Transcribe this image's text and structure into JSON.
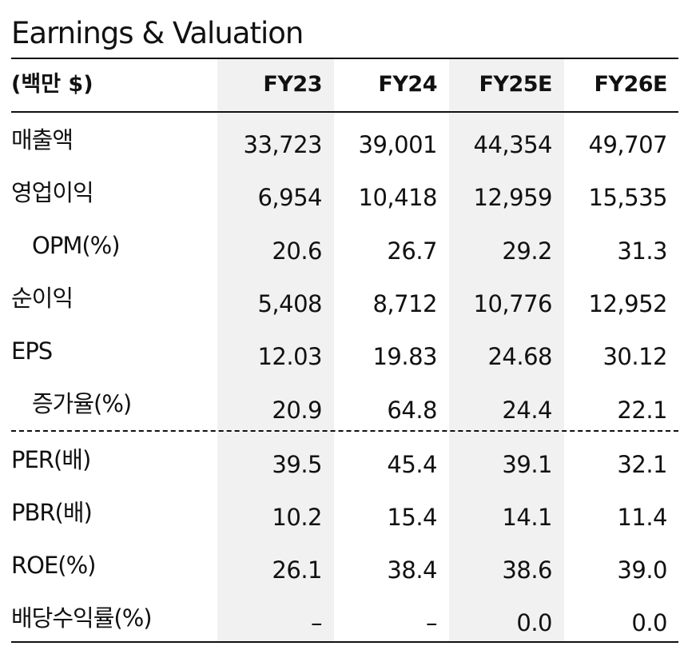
{
  "title": "Earnings & Valuation",
  "header": {
    "unit": "(백만 $)",
    "columns": [
      "FY23",
      "FY24",
      "FY25E",
      "FY26E"
    ]
  },
  "rows": [
    {
      "label": "매출액",
      "values": [
        "33,723",
        "39,001",
        "44,354",
        "49,707"
      ]
    },
    {
      "label": "영업이익",
      "values": [
        "6,954",
        "10,418",
        "12,959",
        "15,535"
      ]
    },
    {
      "label": "OPM(%)",
      "values": [
        "20.6",
        "26.7",
        "29.2",
        "31.3"
      ]
    },
    {
      "label": "순이익",
      "values": [
        "5,408",
        "8,712",
        "10,776",
        "12,952"
      ]
    },
    {
      "label": "EPS",
      "values": [
        "12.03",
        "19.83",
        "24.68",
        "30.12"
      ]
    },
    {
      "label": "증가율(%)",
      "values": [
        "20.9",
        "64.8",
        "24.4",
        "22.1"
      ]
    },
    {
      "label": "PER(배)",
      "values": [
        "39.5",
        "45.4",
        "39.1",
        "32.1"
      ]
    },
    {
      "label": "PBR(배)",
      "values": [
        "10.2",
        "15.4",
        "14.1",
        "11.4"
      ]
    },
    {
      "label": "ROE(%)",
      "values": [
        "26.1",
        "38.4",
        "38.6",
        "39.0"
      ]
    },
    {
      "label": "배당수익률(%)",
      "values": [
        "–",
        "–",
        "0.0",
        "0.0"
      ]
    }
  ]
}
